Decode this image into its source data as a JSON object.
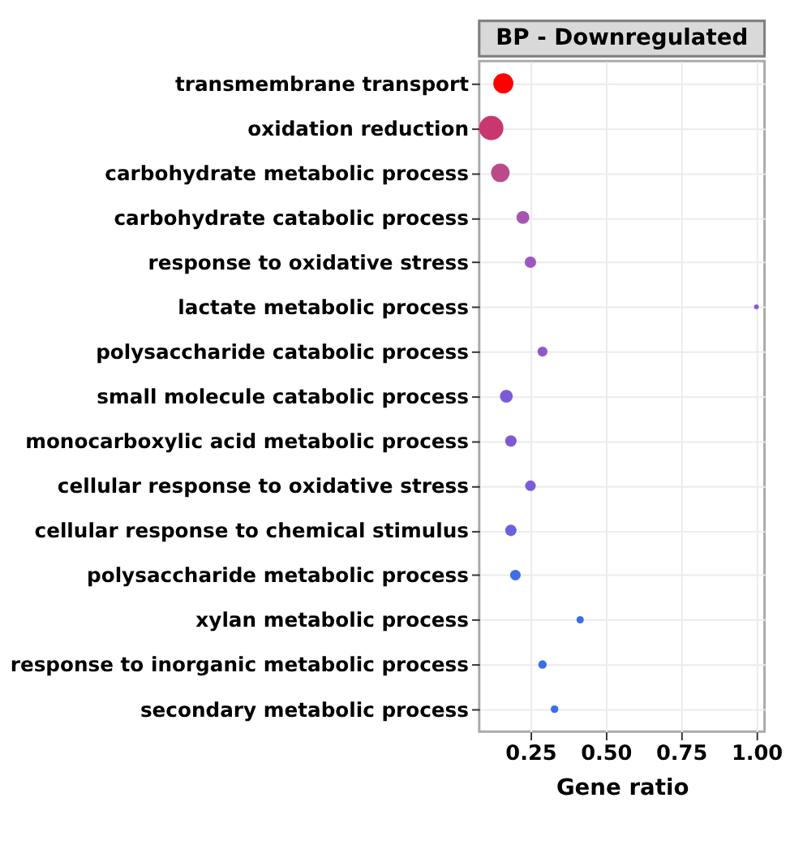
{
  "chart_data": {
    "type": "bubble",
    "title": "BP - Downregulated",
    "xlabel": "Gene ratio",
    "categories": [
      "transmembrane transport",
      "oxidation reduction",
      "carbohydrate metabolic process",
      "carbohydrate catabolic process",
      "response to oxidative stress",
      "lactate metabolic process",
      "polysaccharide catabolic process",
      "small molecule catabolic process",
      "monocarboxylic acid metabolic process",
      "cellular response to oxidative stress",
      "cellular response to chemical stimulus",
      "polysaccharide metabolic process",
      "xylan metabolic process",
      "response to inorganic metabolic process",
      "secondary metabolic process"
    ],
    "orientation": "horizontal",
    "values": [
      0.16,
      0.12,
      0.15,
      0.225,
      0.25,
      1.0,
      0.29,
      0.17,
      0.185,
      0.25,
      0.185,
      0.2,
      0.415,
      0.29,
      0.33
    ],
    "sizes": [
      0.68,
      1,
      0.58,
      0.28,
      0.22,
      0.04,
      0.17,
      0.28,
      0.22,
      0.19,
      0.22,
      0.19,
      0.09,
      0.12,
      0.1
    ],
    "colors": [
      "#ff0000",
      "#c8386e",
      "#bb4a8a",
      "#a654b0",
      "#9d58c0",
      "#8a5cd0",
      "#9258c8",
      "#7b5ad8",
      "#7c5ad6",
      "#7a5cd8",
      "#6a62dc",
      "#3f6ee6",
      "#3a6ee8",
      "#3a6ee8",
      "#3a6ee8"
    ],
    "xlim": [
      0.08,
      1.027
    ],
    "xticks": [
      {
        "value": 0.25,
        "label": "0.25"
      },
      {
        "value": 0.5,
        "label": "0.50"
      },
      {
        "value": 0.75,
        "label": "0.75"
      },
      {
        "value": 1.0,
        "label": "1.00"
      }
    ],
    "grid": true,
    "legend": false
  }
}
